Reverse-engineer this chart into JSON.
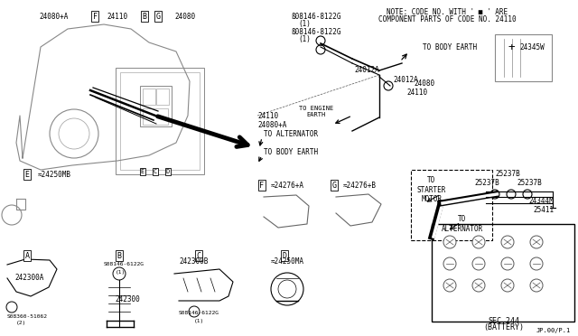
{
  "bg_color": "#ffffff",
  "line_color": "#000000",
  "note_line1": "NOTE: CODE NO. WITH ' ■ ' ARE",
  "note_line2": "COMPONENT PARTS OF CODE NO. 24110",
  "page_ref": "JP.00/P.1",
  "sec_label1": "SEC.244",
  "sec_label2": "(BATTERY)",
  "to_body_earth": "TO BODY EARTH",
  "to_engine_earth": "TO ENGINE\nEARTH",
  "to_alternator": "TO ALTERNATOR",
  "to_body_earth2": "TO BODY EARTH",
  "to_starter": "TO\nSTARTER\nMOTOR",
  "to_alternator2": "TO\nALTERNATOR",
  "label_24080A": "24080+A",
  "label_F1": "F",
  "label_24110": "24110",
  "label_B1": "B",
  "label_G1": "G",
  "label_24080": "24080",
  "label_bolt1": "ß08146-8122G",
  "label_bolt1b": "(1)",
  "label_bolt2": "ß08146-8122G",
  "label_bolt2b": "(1)",
  "label_24012A": "24012A",
  "label_24110b": "24110",
  "label_24080Ab": "24080+A",
  "label_24012A2": "24012A",
  "label_24080b": "24080",
  "label_24110c": "24110",
  "label_24345W": "24345W",
  "label_25237B1": "25237B",
  "label_25237B2": "25237B",
  "label_25237B3": "25237B",
  "label_24344M": "24344M",
  "label_25411": "25411",
  "label_A": "A",
  "label_E": "E",
  "label_E_part": "≂24250MB",
  "label_F2": "F",
  "label_F_part": "≂24276+A",
  "label_G2": "G",
  "label_G_part": "≂24276+B",
  "label_botA": "A",
  "label_242300A": "242300A",
  "label_botB": "B",
  "label_S08146_6122G": "S08146-6122G",
  "label_1a": "(1)",
  "label_242300": "242300",
  "label_botC": "C",
  "label_242300B": "242300B",
  "label_S08146_6122G2": "S08146-6122G",
  "label_1b": "(1)",
  "label_botD": "D",
  "label_24250MA": "≂24250MA",
  "label_S08360": "S08360-51062",
  "label_2": "(2)"
}
